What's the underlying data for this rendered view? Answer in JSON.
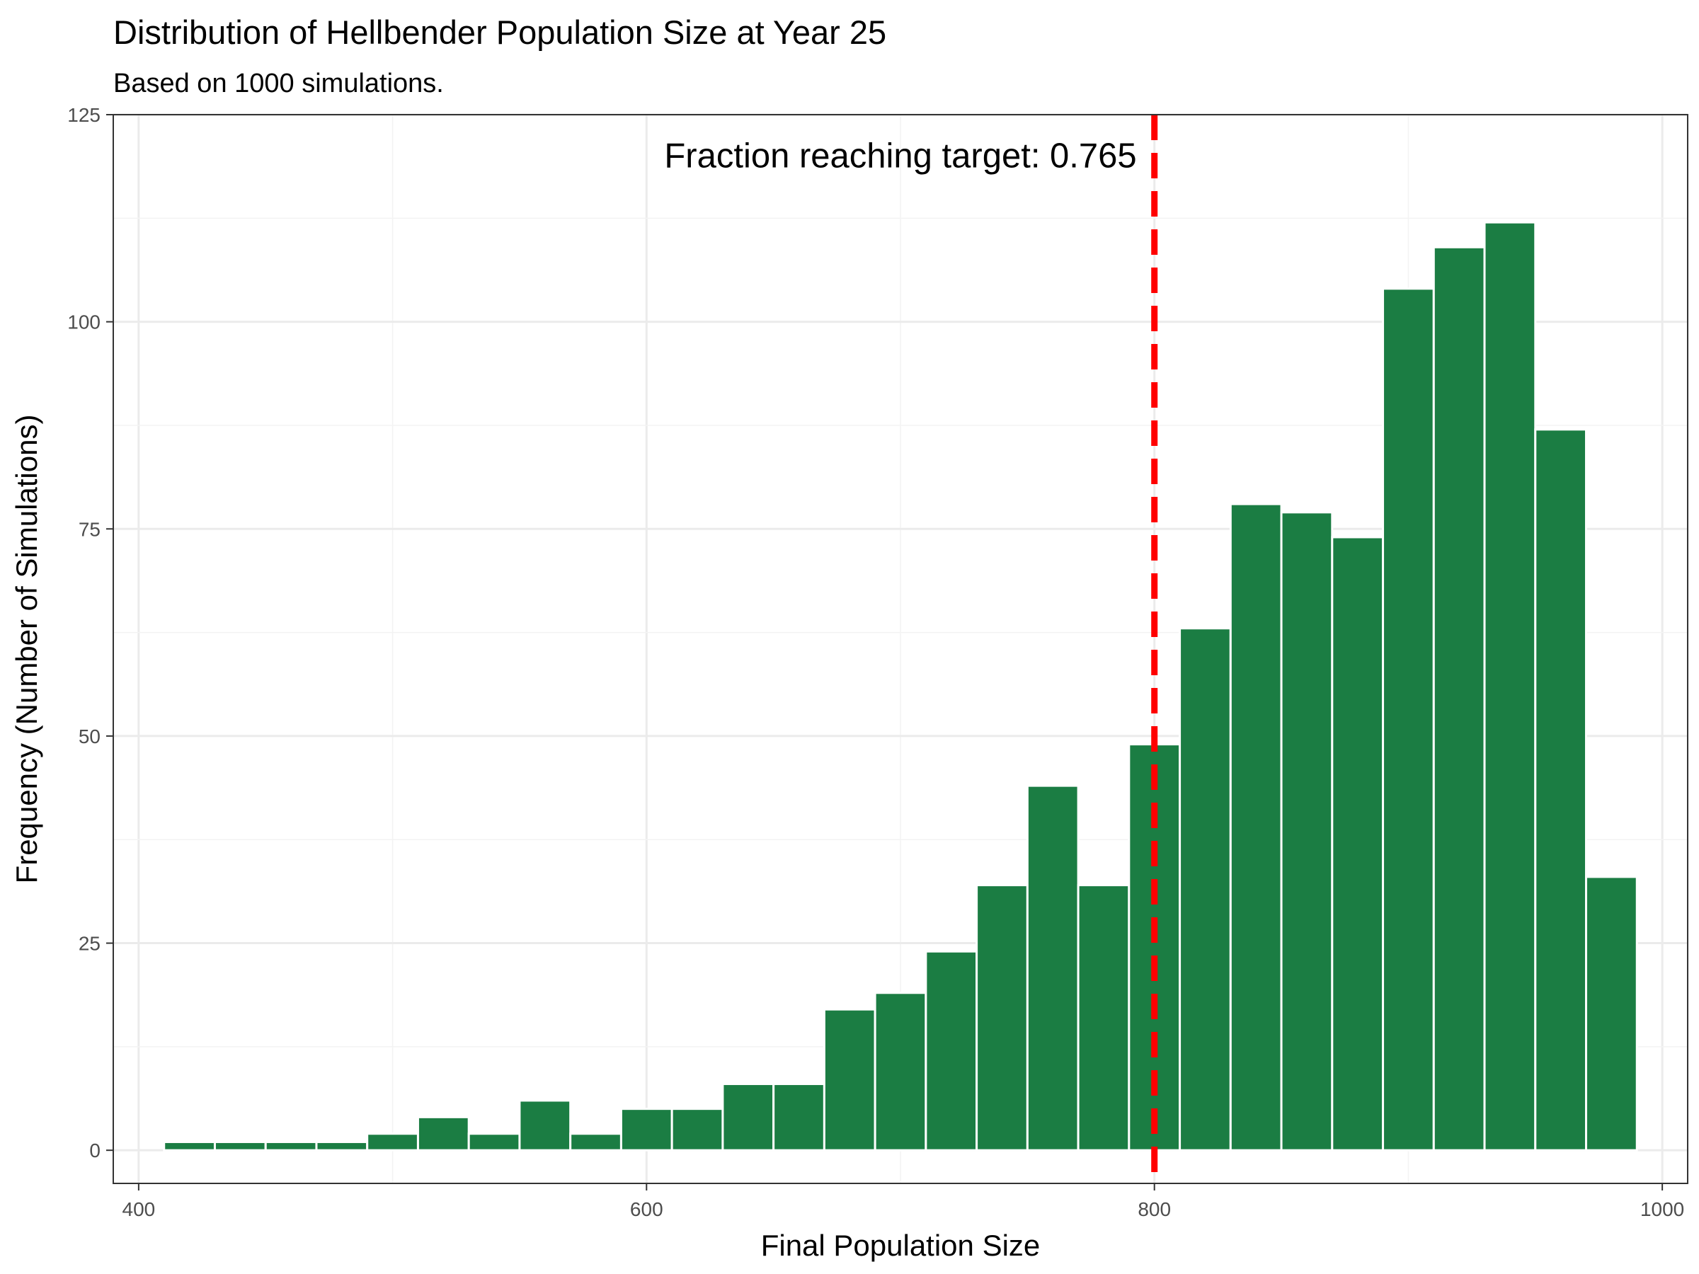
{
  "chart_data": {
    "type": "bar",
    "title": "Distribution of Hellbender Population Size at Year 25",
    "subtitle": "Based on 1000 simulations.",
    "xlabel": "Final Population Size",
    "ylabel": "Frequency (Number of Simulations)",
    "xlim": [
      390,
      1010
    ],
    "ylim": [
      -4,
      125
    ],
    "x_ticks": [
      400,
      600,
      800,
      1000
    ],
    "x_tick_labels": [
      "400",
      "600",
      "800",
      "1000"
    ],
    "y_ticks": [
      0,
      25,
      50,
      75,
      100,
      125
    ],
    "y_tick_labels": [
      "0",
      "25",
      "50",
      "75",
      "100",
      "125"
    ],
    "bin_width": 20,
    "bins": [
      {
        "x_start": 410,
        "x_end": 430,
        "count": 1
      },
      {
        "x_start": 430,
        "x_end": 450,
        "count": 1
      },
      {
        "x_start": 450,
        "x_end": 470,
        "count": 1
      },
      {
        "x_start": 470,
        "x_end": 490,
        "count": 1
      },
      {
        "x_start": 490,
        "x_end": 510,
        "count": 2
      },
      {
        "x_start": 510,
        "x_end": 530,
        "count": 4
      },
      {
        "x_start": 530,
        "x_end": 550,
        "count": 2
      },
      {
        "x_start": 550,
        "x_end": 570,
        "count": 6
      },
      {
        "x_start": 570,
        "x_end": 590,
        "count": 2
      },
      {
        "x_start": 590,
        "x_end": 610,
        "count": 5
      },
      {
        "x_start": 610,
        "x_end": 630,
        "count": 5
      },
      {
        "x_start": 630,
        "x_end": 650,
        "count": 8
      },
      {
        "x_start": 650,
        "x_end": 670,
        "count": 8
      },
      {
        "x_start": 670,
        "x_end": 690,
        "count": 17
      },
      {
        "x_start": 690,
        "x_end": 710,
        "count": 19
      },
      {
        "x_start": 710,
        "x_end": 730,
        "count": 24
      },
      {
        "x_start": 730,
        "x_end": 750,
        "count": 32
      },
      {
        "x_start": 750,
        "x_end": 770,
        "count": 44
      },
      {
        "x_start": 770,
        "x_end": 790,
        "count": 32
      },
      {
        "x_start": 790,
        "x_end": 810,
        "count": 49
      },
      {
        "x_start": 810,
        "x_end": 830,
        "count": 63
      },
      {
        "x_start": 830,
        "x_end": 850,
        "count": 78
      },
      {
        "x_start": 850,
        "x_end": 870,
        "count": 77
      },
      {
        "x_start": 870,
        "x_end": 890,
        "count": 74
      },
      {
        "x_start": 890,
        "x_end": 910,
        "count": 104
      },
      {
        "x_start": 910,
        "x_end": 930,
        "count": 109
      },
      {
        "x_start": 930,
        "x_end": 950,
        "count": 112
      },
      {
        "x_start": 950,
        "x_end": 970,
        "count": 87
      },
      {
        "x_start": 970,
        "x_end": 990,
        "count": 33
      }
    ],
    "target_line": {
      "x": 800,
      "color": "#ff0000",
      "style": "dashed"
    },
    "annotation": {
      "text": "Fraction reaching target: 0.765",
      "x": 700,
      "y": 120
    },
    "bar_color": "#1b7d43",
    "grid": true,
    "legend": "none"
  }
}
